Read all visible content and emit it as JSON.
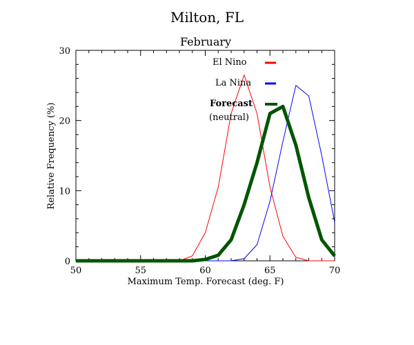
{
  "chart_data": {
    "type": "line",
    "title": "Milton, FL",
    "subtitle": "February",
    "xlabel": "Maximum Temp. Forecast (deg. F)",
    "ylabel": "Relative Frequency (%)",
    "xlim": [
      50,
      70
    ],
    "ylim": [
      0,
      30
    ],
    "x_ticks": [
      50,
      55,
      60,
      65,
      70
    ],
    "y_ticks": [
      0,
      10,
      20,
      30
    ],
    "x_tick_labels": [
      "50",
      "55",
      "60",
      "65",
      "70"
    ],
    "y_tick_labels": [
      "0",
      "10",
      "20",
      "30"
    ],
    "legend": {
      "placement": "top-right",
      "entries": [
        {
          "label": "El Nino",
          "color": "#ff0000"
        },
        {
          "label": "La Nina",
          "color": "#0000ff"
        },
        {
          "label": "Forecast",
          "label2": "(neutral)",
          "color": "#005500"
        }
      ]
    },
    "series": [
      {
        "name": "El Nino",
        "color": "#ff0000",
        "width": 1,
        "x": [
          50,
          51,
          52,
          53,
          54,
          55,
          56,
          57,
          58,
          59,
          60,
          61,
          62,
          63,
          64,
          65,
          66,
          67,
          68,
          69,
          70
        ],
        "values": [
          0,
          0,
          0,
          0,
          0,
          0,
          0,
          0,
          0,
          0.7,
          4,
          10.5,
          21,
          26.5,
          21,
          10.5,
          3.5,
          0.5,
          0,
          0,
          0
        ]
      },
      {
        "name": "La Nina",
        "color": "#0000ff",
        "width": 1,
        "x": [
          50,
          51,
          52,
          53,
          54,
          55,
          56,
          57,
          58,
          59,
          60,
          61,
          62,
          63,
          64,
          65,
          66,
          67,
          68,
          69,
          70
        ],
        "values": [
          0,
          0,
          0,
          0,
          0,
          0,
          0,
          0,
          0,
          0,
          0,
          0,
          0,
          0.3,
          2.3,
          8.5,
          17,
          25,
          23.5,
          15,
          5.5
        ]
      },
      {
        "name": "Forecast",
        "color": "#005500",
        "width": 5,
        "x": [
          50,
          51,
          52,
          53,
          54,
          55,
          56,
          57,
          58,
          59,
          60,
          61,
          62,
          63,
          64,
          65,
          66,
          67,
          68,
          69,
          70
        ],
        "values": [
          0,
          0,
          0,
          0,
          0,
          0,
          0,
          0,
          0,
          0,
          0.2,
          0.8,
          3,
          8,
          14,
          21,
          22,
          16.5,
          9,
          3,
          0.7
        ]
      }
    ]
  }
}
